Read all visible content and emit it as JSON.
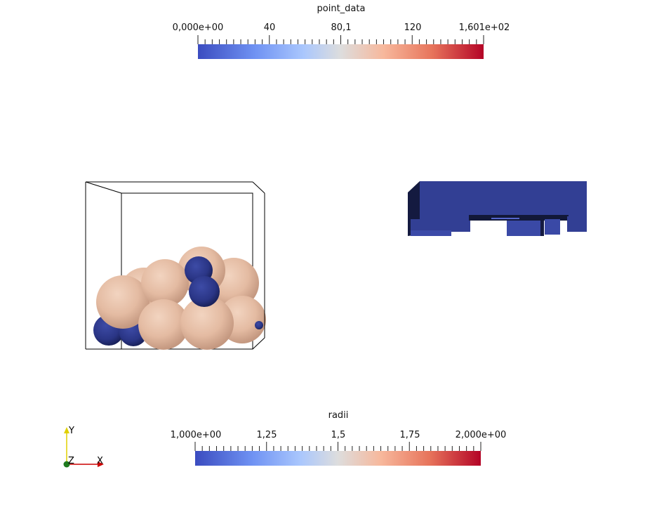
{
  "point_data_bar": {
    "title": "point_data",
    "labels": [
      "0,000e+00",
      "40",
      "80,1",
      "120",
      "1,601e+02"
    ]
  },
  "radii_bar": {
    "title": "radii",
    "labels": [
      "1,000e+00",
      "1,25",
      "1,5",
      "1,75",
      "2,000e+00"
    ]
  },
  "axes": {
    "y": "Y",
    "z": "Z",
    "x": "X"
  },
  "colors": {
    "sphere_large": "#e8c0a8",
    "sphere_small": "#2d3a8c",
    "box_solid": "#323f94"
  }
}
